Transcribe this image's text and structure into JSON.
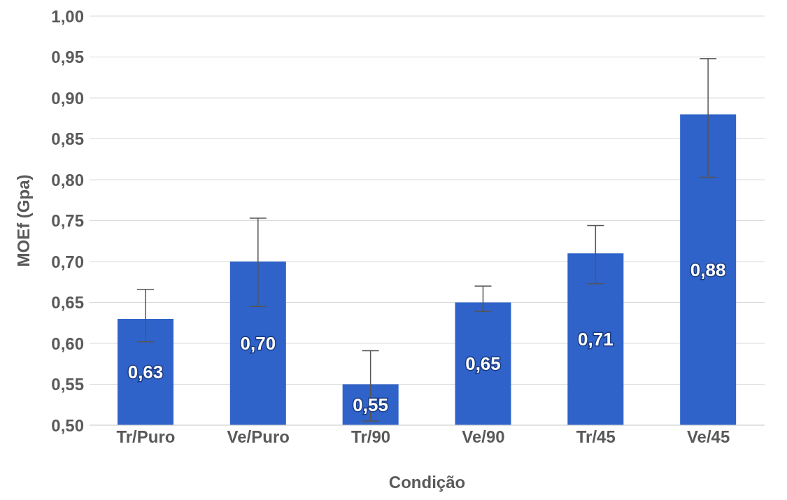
{
  "chart_data": {
    "type": "bar",
    "xlabel": "Condição",
    "ylabel": "MOEf (Gpa)",
    "categories": [
      "Tr/Puro",
      "Ve/Puro",
      "Tr/90",
      "Ve/90",
      "Tr/45",
      "Ve/45"
    ],
    "values": [
      0.63,
      0.7,
      0.55,
      0.65,
      0.71,
      0.88
    ],
    "value_labels": [
      "0,63",
      "0,70",
      "0,55",
      "0,65",
      "0,71",
      "0,88"
    ],
    "errors": [
      [
        0.602,
        0.666
      ],
      [
        0.645,
        0.753
      ],
      [
        0.505,
        0.591
      ],
      [
        0.639,
        0.67
      ],
      [
        0.673,
        0.744
      ],
      [
        0.803,
        0.948
      ]
    ],
    "color": "#2f63c9",
    "ylim": [
      0.5,
      1.0
    ],
    "yticks": [
      {
        "value": 0.5,
        "label": "0,50"
      },
      {
        "value": 0.55,
        "label": "0,55"
      },
      {
        "value": 0.6,
        "label": "0,60"
      },
      {
        "value": 0.65,
        "label": "0,65"
      },
      {
        "value": 0.7,
        "label": "0,70"
      },
      {
        "value": 0.75,
        "label": "0,75"
      },
      {
        "value": 0.8,
        "label": "0,80"
      },
      {
        "value": 0.85,
        "label": "0,85"
      },
      {
        "value": 0.9,
        "label": "0,90"
      },
      {
        "value": 0.95,
        "label": "0,95"
      },
      {
        "value": 1.0,
        "label": "1,00"
      }
    ],
    "grid": "y",
    "legend": false
  }
}
